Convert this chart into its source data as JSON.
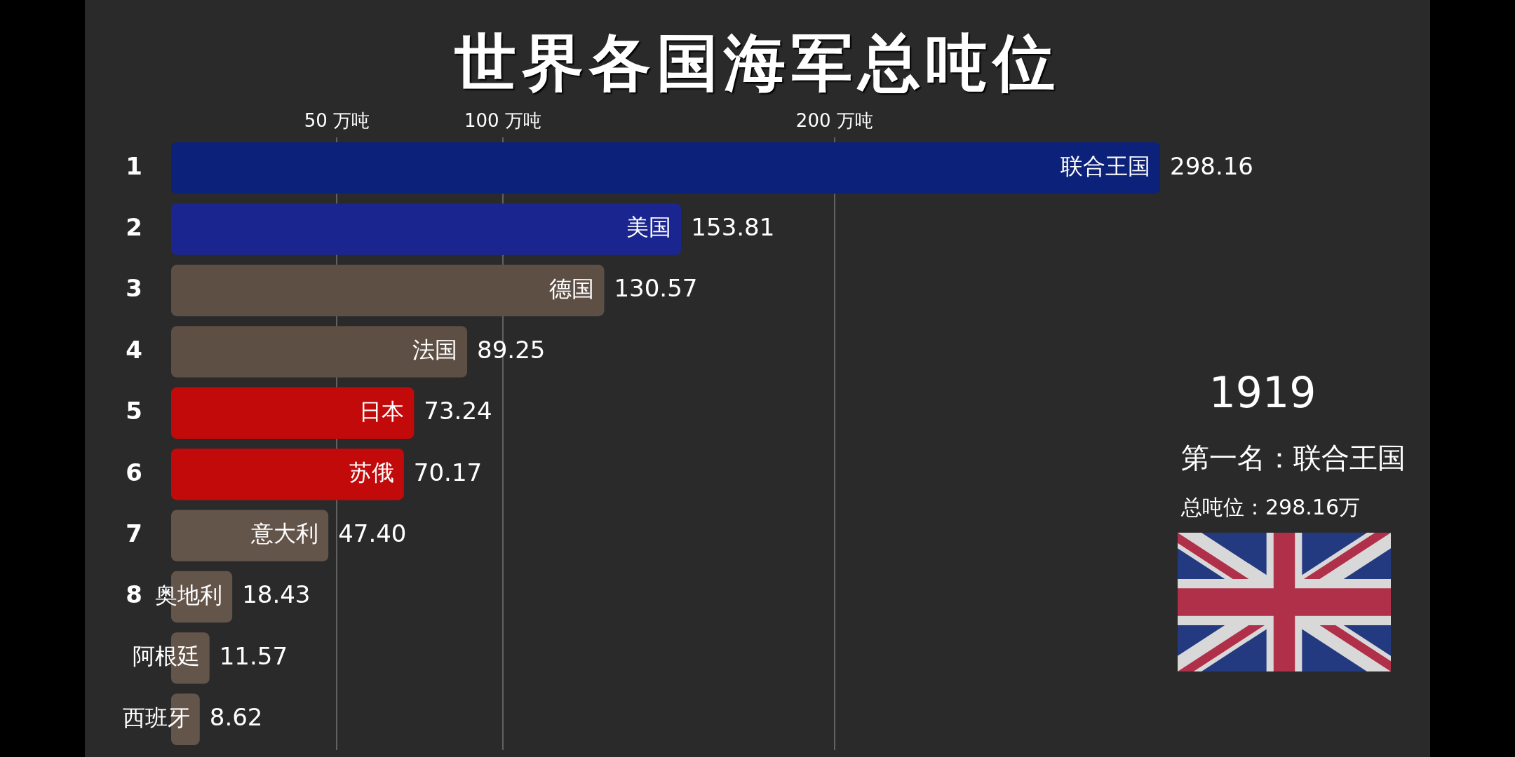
{
  "chart_data": {
    "type": "bar",
    "orientation": "horizontal",
    "title": "世界各国海军总吨位",
    "categories": [
      "联合王国",
      "美国",
      "德国",
      "法国",
      "日本",
      "苏俄",
      "意大利",
      "奥地利",
      "阿根廷",
      "西班牙"
    ],
    "values": [
      298.16,
      153.81,
      130.57,
      89.25,
      73.24,
      70.17,
      47.4,
      18.43,
      11.57,
      8.62
    ],
    "colors": [
      "#0c2179",
      "#1b2590",
      "#5e4f45",
      "#5e4f45",
      "#c20a0a",
      "#c20a0a",
      "#64554b",
      "#64554b",
      "#64554b",
      "#64554b"
    ],
    "value_labels": [
      "298.16",
      "153.81",
      "130.57",
      "89.25",
      "73.24",
      "70.17",
      "47.40",
      "18.43",
      "11.57",
      "8.62"
    ],
    "xlim": [
      0,
      298.16
    ],
    "xticks": [
      {
        "value": 50,
        "label": "50 万吨"
      },
      {
        "value": 100,
        "label": "100 万吨"
      },
      {
        "value": 200,
        "label": "200 万吨"
      }
    ],
    "grid": "x",
    "annotations": [
      "1919",
      "第一名：联合王国",
      "总吨位：298.16万",
      "1",
      "2",
      "3",
      "4",
      "5",
      "6",
      "7",
      "8"
    ]
  }
}
